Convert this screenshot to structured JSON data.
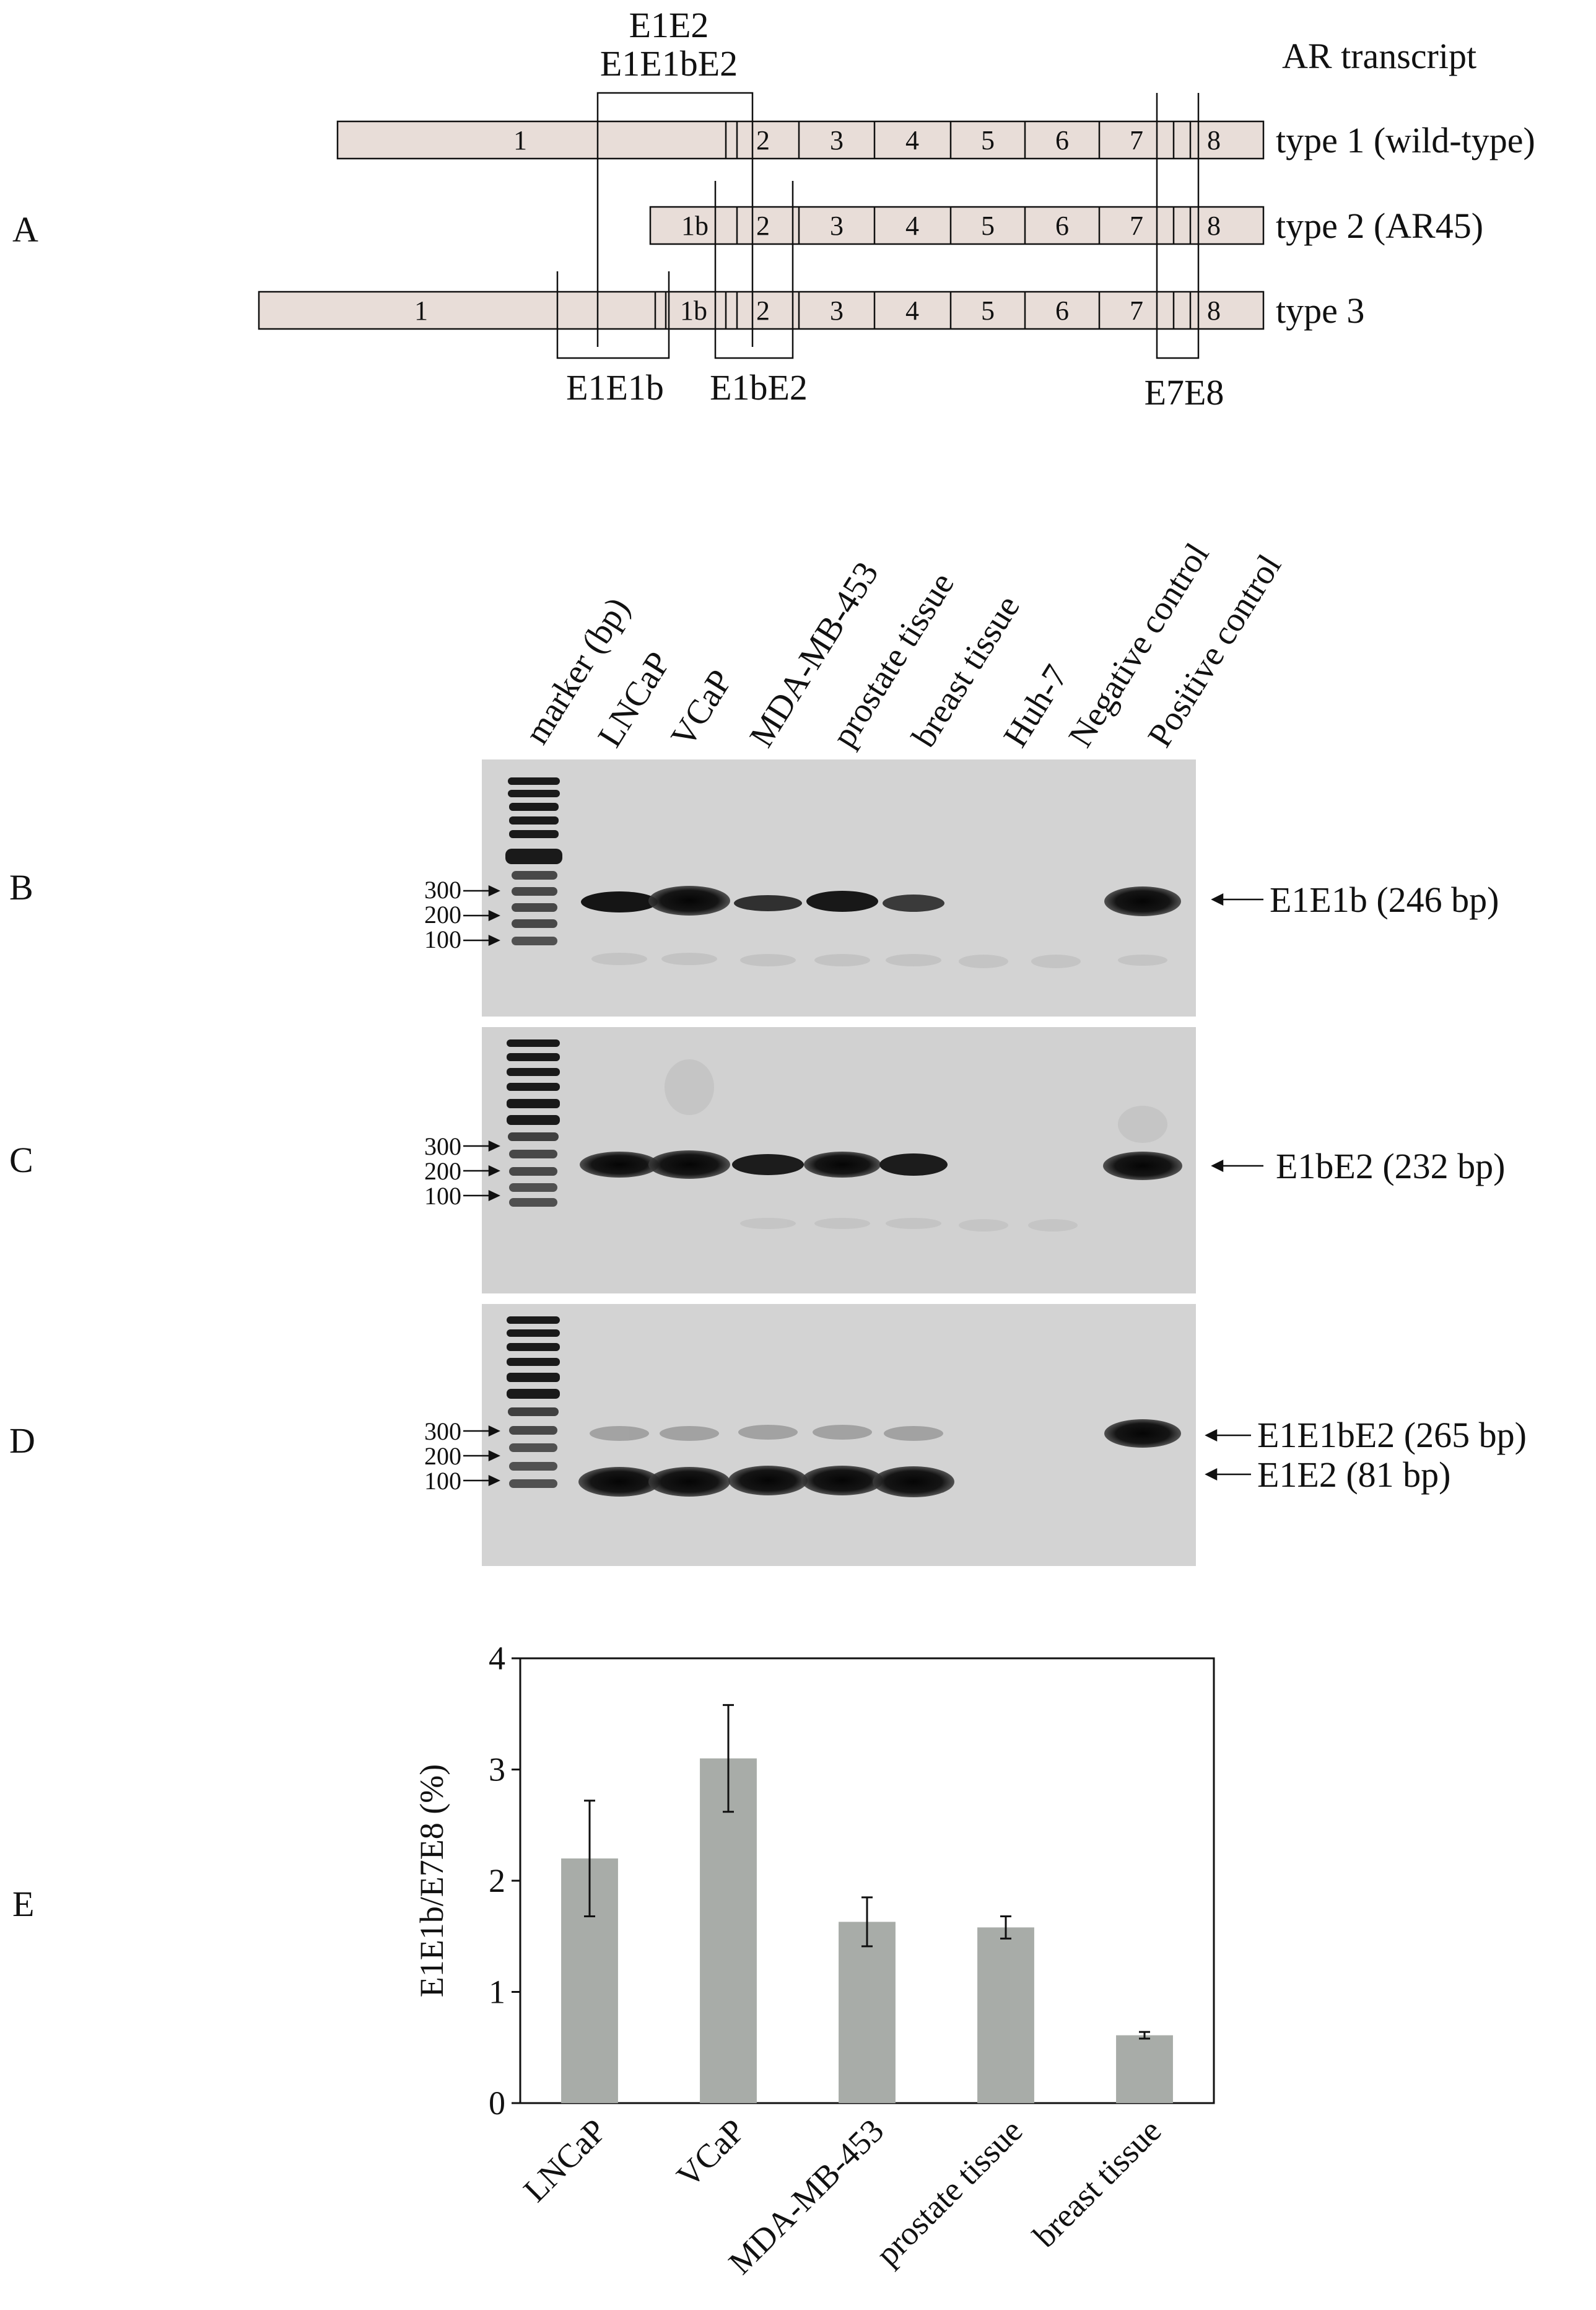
{
  "panels": {
    "A": "A",
    "B": "B",
    "C": "C",
    "D": "D",
    "E": "E"
  },
  "diagram": {
    "header": "AR transcript",
    "primer_labels_top": [
      "E1E2",
      "E1E1bE2"
    ],
    "primer_labels_bottom": {
      "e1e1b": "E1E1b",
      "e1be2": "E1bE2",
      "e7e8": "E7E8"
    },
    "transcripts": [
      {
        "name": "type 1 (wild-type)",
        "exons": [
          "1",
          "2",
          "3",
          "4",
          "5",
          "6",
          "7",
          "8"
        ]
      },
      {
        "name": "type 2 (AR45)",
        "exons": [
          "1b",
          "2",
          "3",
          "4",
          "5",
          "6",
          "7",
          "8"
        ]
      },
      {
        "name": "type 3",
        "exons": [
          "1",
          "1b",
          "2",
          "3",
          "4",
          "5",
          "6",
          "7",
          "8"
        ]
      }
    ]
  },
  "gel": {
    "lanes": [
      "marker (bp)",
      "LNCaP",
      "VCaP",
      "MDA-MB-453",
      "prostate tissue",
      "breast tissue",
      "Huh-7",
      "Negative control",
      "Positive control"
    ],
    "marker_sizes": [
      "300",
      "200",
      "100"
    ],
    "panels": [
      {
        "id": "B",
        "bands": [
          "E1E1b (246 bp)"
        ]
      },
      {
        "id": "C",
        "bands": [
          "E1bE2 (232 bp)"
        ]
      },
      {
        "id": "D",
        "bands": [
          "E1E1bE2 (265 bp)",
          "E1E2 (81 bp)"
        ]
      }
    ]
  },
  "chart_data": {
    "type": "bar",
    "categories": [
      "LNCaP",
      "VCaP",
      "MDA-MB-453",
      "prostate tissue",
      "breast tissue"
    ],
    "values": [
      2.2,
      3.1,
      1.63,
      1.58,
      0.61
    ],
    "errors": [
      0.52,
      0.48,
      0.22,
      0.1,
      0.03
    ],
    "ylabel": "E1E1b/E7E8 (%)",
    "ylim": [
      0,
      4
    ],
    "yticks": [
      "0",
      "1",
      "2",
      "3",
      "4"
    ],
    "bar_color": "#a8aca8",
    "grid": false
  }
}
